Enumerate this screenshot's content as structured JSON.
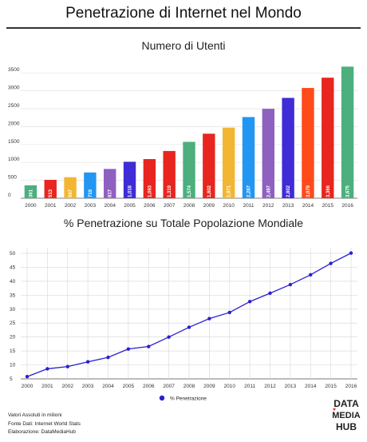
{
  "header": {
    "title": "Penetrazione di Internet nel Mondo"
  },
  "chart_data": [
    {
      "type": "bar",
      "title": "Numero di Utenti",
      "categories": [
        "2000",
        "2001",
        "2002",
        "2003",
        "2004",
        "2005",
        "2006",
        "2007",
        "2008",
        "2009",
        "2010",
        "2011",
        "2012",
        "2013",
        "2014",
        "2015",
        "2016"
      ],
      "values": [
        361,
        513,
        587,
        719,
        817,
        1018,
        1093,
        1319,
        1574,
        1802,
        1971,
        2267,
        2497,
        2802,
        3079,
        3366,
        3675
      ],
      "data_labels": [
        "361",
        "513",
        "587",
        "719",
        "817",
        "1,018",
        "1,093",
        "1,319",
        "1,574",
        "1,802",
        "1,971",
        "2,267",
        "2,497",
        "2,802",
        "3,079",
        "3,366",
        "3,675"
      ],
      "bar_colors": [
        "#4caf7d",
        "#e8251f",
        "#f2b632",
        "#2196f3",
        "#8e60c0",
        "#3f2cd6",
        "#e8251f",
        "#e8251f",
        "#4caf7d",
        "#e8251f",
        "#f2b632",
        "#2196f3",
        "#8e60c0",
        "#3f2cd6",
        "#ff4a1a",
        "#e8251f",
        "#4caf7d"
      ],
      "yticks": [
        0,
        500,
        1000,
        1500,
        2000,
        2500,
        3000,
        3500
      ],
      "ylim": [
        0,
        3750
      ],
      "grid": true
    },
    {
      "type": "line",
      "title": "% Penetrazione su Totale Popolazione Mondiale",
      "x": [
        "2000",
        "2001",
        "2002",
        "2003",
        "2004",
        "2005",
        "2006",
        "2007",
        "2008",
        "2009",
        "2010",
        "2011",
        "2012",
        "2013",
        "2014",
        "2015",
        "2016"
      ],
      "series": [
        {
          "name": "% Penetrazione",
          "color": "#2a1fd1",
          "values": [
            5.8,
            8.6,
            9.4,
            11.1,
            12.7,
            15.7,
            16.6,
            20.0,
            23.5,
            26.6,
            28.8,
            32.7,
            35.7,
            38.8,
            42.3,
            46.4,
            50.1
          ]
        }
      ],
      "yticks": [
        5,
        10,
        15,
        20,
        25,
        30,
        35,
        40,
        45,
        50
      ],
      "ylim": [
        5,
        52
      ],
      "grid": true,
      "legend": "bottom"
    }
  ],
  "footer": {
    "line1": "Valori Assoluti in milioni",
    "line2": "Fonte Dati: Internet World Stats",
    "line3": "Elaborazione: DataMediaHub"
  },
  "logo": {
    "text1": "DATA",
    "text2": "MEDIA",
    "text3": "HUB"
  }
}
